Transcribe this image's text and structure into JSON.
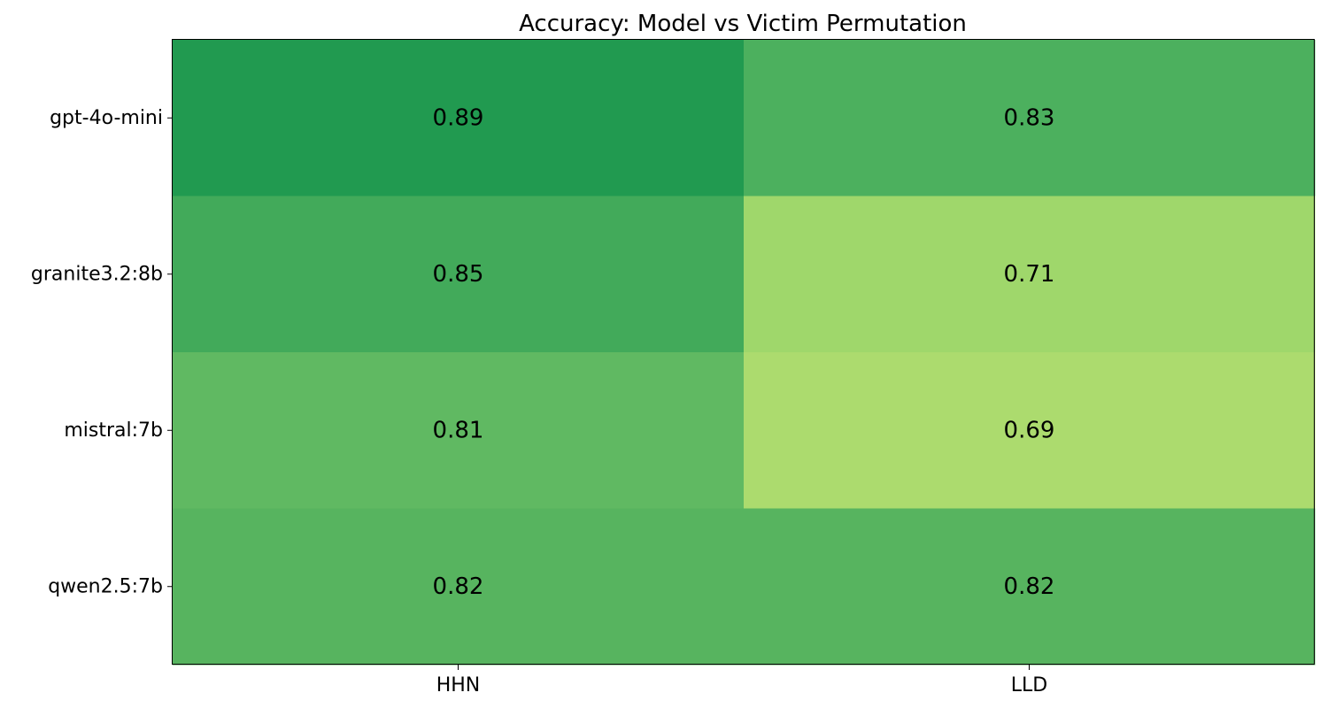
{
  "chart_data": {
    "type": "heatmap",
    "title": "Accuracy: Model vs Victim Permutation",
    "xlabel": "",
    "ylabel": "",
    "x_categories": [
      "HHN",
      "LLD"
    ],
    "y_categories": [
      "gpt-4o-mini",
      "granite3.2:8b",
      "mistral:7b",
      "qwen2.5:7b"
    ],
    "values": [
      [
        0.89,
        0.83
      ],
      [
        0.85,
        0.71
      ],
      [
        0.81,
        0.69
      ],
      [
        0.82,
        0.82
      ]
    ],
    "labels": [
      [
        "0.89",
        "0.83"
      ],
      [
        "0.85",
        "0.71"
      ],
      [
        "0.81",
        "0.69"
      ],
      [
        "0.82",
        "0.82"
      ]
    ],
    "colors": [
      [
        "#219a50",
        "#4cb05e"
      ],
      [
        "#42aa5a",
        "#9fd76b"
      ],
      [
        "#60b962",
        "#acdb6e"
      ],
      [
        "#57b45f",
        "#57b45f"
      ]
    ],
    "colormap": "RdYlGn",
    "colorbar": false,
    "grid": false
  }
}
